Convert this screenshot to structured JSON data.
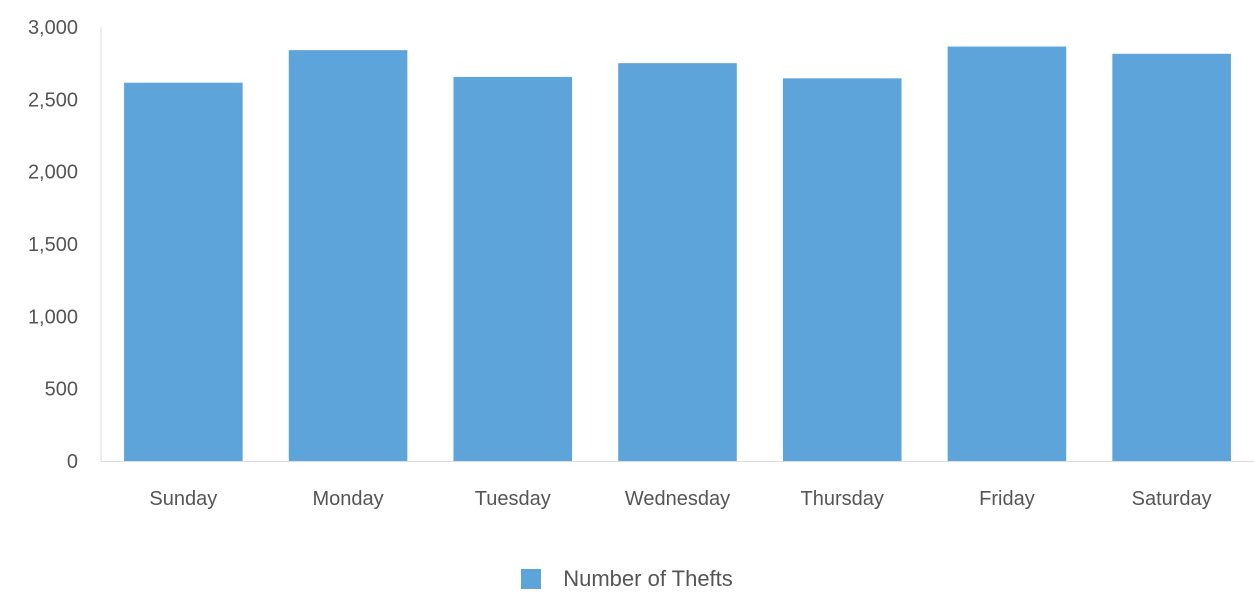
{
  "chart_data": {
    "type": "bar",
    "categories": [
      "Sunday",
      "Monday",
      "Tuesday",
      "Wednesday",
      "Thursday",
      "Friday",
      "Saturday"
    ],
    "series": [
      {
        "name": "Number of Thefts",
        "values": [
          2615,
          2840,
          2655,
          2750,
          2645,
          2865,
          2815
        ]
      }
    ],
    "y_ticks": [
      "0",
      "500",
      "1,000",
      "1,500",
      "2,000",
      "2,500",
      "3,000"
    ],
    "ylim": [
      0,
      3000
    ],
    "grid": false,
    "legend_position": "bottom-center",
    "colors": {
      "bar": "#5da4da",
      "axis": "#dddddd"
    }
  }
}
